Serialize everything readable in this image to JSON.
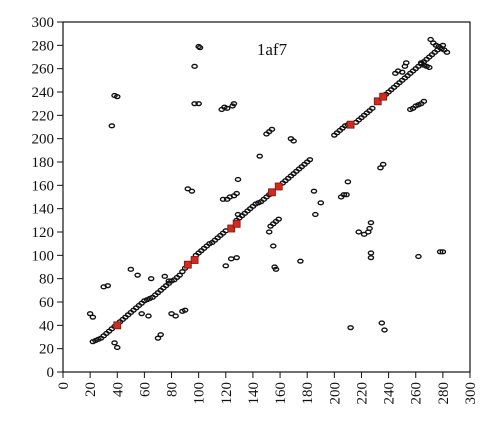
{
  "chart_data": {
    "type": "scatter",
    "title": "1af7",
    "xlabel": "",
    "ylabel": "",
    "xlim": [
      0,
      300
    ],
    "ylim": [
      0,
      300
    ],
    "x_ticks": [
      0,
      20,
      40,
      60,
      80,
      100,
      120,
      140,
      160,
      180,
      200,
      220,
      240,
      260,
      280,
      300
    ],
    "y_ticks": [
      0,
      20,
      40,
      60,
      80,
      100,
      120,
      140,
      160,
      180,
      200,
      220,
      240,
      260,
      280,
      300
    ],
    "x_tick_labels": [
      "0",
      "20",
      "40",
      "60",
      "80",
      "100",
      "120",
      "140",
      "160",
      "180",
      "200",
      "220",
      "240",
      "260",
      "280",
      "300"
    ],
    "y_tick_labels": [
      "0",
      "20",
      "40",
      "60",
      "80",
      "100",
      "120",
      "140",
      "160",
      "180",
      "200",
      "220",
      "240",
      "260",
      "280",
      "300"
    ],
    "grid": false,
    "colors": {
      "contact": "#111111",
      "highlight": "#d42a1e"
    },
    "series": [
      {
        "role": "contacts",
        "points": [
          [
            22,
            26
          ],
          [
            24,
            27
          ],
          [
            26,
            28
          ],
          [
            28,
            29
          ],
          [
            30,
            31
          ],
          [
            32,
            33
          ],
          [
            34,
            35
          ],
          [
            36,
            37
          ],
          [
            38,
            39
          ],
          [
            42,
            43
          ],
          [
            44,
            45
          ],
          [
            46,
            47
          ],
          [
            48,
            49
          ],
          [
            50,
            51
          ],
          [
            52,
            53
          ],
          [
            54,
            55
          ],
          [
            56,
            57
          ],
          [
            58,
            59
          ],
          [
            60,
            61
          ],
          [
            62,
            62
          ],
          [
            64,
            63
          ],
          [
            66,
            64
          ],
          [
            68,
            66
          ],
          [
            70,
            68
          ],
          [
            72,
            70
          ],
          [
            74,
            72
          ],
          [
            76,
            74
          ],
          [
            78,
            76
          ],
          [
            80,
            78
          ],
          [
            82,
            79
          ],
          [
            84,
            81
          ],
          [
            86,
            83
          ],
          [
            88,
            86
          ],
          [
            90,
            89
          ],
          [
            98,
            100
          ],
          [
            100,
            102
          ],
          [
            102,
            104
          ],
          [
            104,
            106
          ],
          [
            106,
            108
          ],
          [
            108,
            110
          ],
          [
            110,
            111
          ],
          [
            112,
            113
          ],
          [
            114,
            115
          ],
          [
            116,
            117
          ],
          [
            118,
            119
          ],
          [
            120,
            121
          ],
          [
            128,
            130
          ],
          [
            130,
            132
          ],
          [
            132,
            134
          ],
          [
            134,
            136
          ],
          [
            136,
            138
          ],
          [
            138,
            140
          ],
          [
            140,
            142
          ],
          [
            142,
            144
          ],
          [
            144,
            145
          ],
          [
            146,
            146
          ],
          [
            148,
            148
          ],
          [
            150,
            150
          ],
          [
            152,
            152
          ],
          [
            162,
            162
          ],
          [
            164,
            164
          ],
          [
            166,
            166
          ],
          [
            168,
            168
          ],
          [
            170,
            170
          ],
          [
            172,
            172
          ],
          [
            174,
            174
          ],
          [
            176,
            176
          ],
          [
            178,
            178
          ],
          [
            180,
            180
          ],
          [
            182,
            182
          ],
          [
            200,
            203
          ],
          [
            202,
            205
          ],
          [
            204,
            207
          ],
          [
            206,
            209
          ],
          [
            208,
            211
          ],
          [
            210,
            212
          ],
          [
            216,
            214
          ],
          [
            218,
            216
          ],
          [
            220,
            218
          ],
          [
            222,
            220
          ],
          [
            224,
            222
          ],
          [
            226,
            224
          ],
          [
            228,
            226
          ],
          [
            238,
            238
          ],
          [
            240,
            240
          ],
          [
            242,
            242
          ],
          [
            244,
            244
          ],
          [
            246,
            246
          ],
          [
            248,
            248
          ],
          [
            250,
            250
          ],
          [
            252,
            252
          ],
          [
            254,
            254
          ],
          [
            256,
            256
          ],
          [
            258,
            258
          ],
          [
            260,
            260
          ],
          [
            262,
            262
          ],
          [
            264,
            264
          ],
          [
            266,
            266
          ],
          [
            268,
            268
          ],
          [
            270,
            270
          ],
          [
            272,
            272
          ],
          [
            274,
            274
          ],
          [
            276,
            276
          ],
          [
            278,
            278
          ],
          [
            280,
            280
          ],
          [
            38,
            237
          ],
          [
            40,
            236
          ],
          [
            36,
            211
          ],
          [
            97,
            262
          ],
          [
            100,
            279
          ],
          [
            101,
            278
          ],
          [
            97,
            230
          ],
          [
            100,
            230
          ],
          [
            92,
            157
          ],
          [
            95,
            155
          ],
          [
            118,
            148
          ],
          [
            121,
            148
          ],
          [
            123,
            150
          ],
          [
            126,
            151
          ],
          [
            128,
            153
          ],
          [
            129,
            135
          ],
          [
            117,
            225
          ],
          [
            119,
            227
          ],
          [
            121,
            226
          ],
          [
            125,
            228
          ],
          [
            126,
            230
          ],
          [
            129,
            165
          ],
          [
            153,
            125
          ],
          [
            155,
            127
          ],
          [
            157,
            129
          ],
          [
            159,
            131
          ],
          [
            152,
            120
          ],
          [
            150,
            204
          ],
          [
            152,
            206
          ],
          [
            154,
            208
          ],
          [
            145,
            185
          ],
          [
            155,
            108
          ],
          [
            156,
            90
          ],
          [
            157,
            88
          ],
          [
            175,
            95
          ],
          [
            185,
            155
          ],
          [
            186,
            135
          ],
          [
            190,
            145
          ],
          [
            205,
            150
          ],
          [
            207,
            152
          ],
          [
            209,
            152
          ],
          [
            210,
            163
          ],
          [
            212,
            38
          ],
          [
            218,
            120
          ],
          [
            222,
            118
          ],
          [
            225,
            120
          ],
          [
            226,
            123
          ],
          [
            227,
            128
          ],
          [
            227,
            102
          ],
          [
            227,
            98
          ],
          [
            235,
            42
          ],
          [
            237,
            36
          ],
          [
            245,
            256
          ],
          [
            247,
            258
          ],
          [
            250,
            257
          ],
          [
            252,
            262
          ],
          [
            253,
            265
          ],
          [
            256,
            225
          ],
          [
            258,
            226
          ],
          [
            260,
            228
          ],
          [
            262,
            229
          ],
          [
            264,
            230
          ],
          [
            266,
            232
          ],
          [
            262,
            99
          ],
          [
            271,
            285
          ],
          [
            273,
            282
          ],
          [
            275,
            280
          ],
          [
            277,
            279
          ],
          [
            279,
            277
          ],
          [
            281,
            276
          ],
          [
            283,
            274
          ],
          [
            264,
            265
          ],
          [
            266,
            263
          ],
          [
            268,
            262
          ],
          [
            270,
            261
          ],
          [
            278,
            103
          ],
          [
            280,
            103
          ],
          [
            20,
            50
          ],
          [
            22,
            47
          ],
          [
            30,
            73
          ],
          [
            33,
            74
          ],
          [
            38,
            25
          ],
          [
            40,
            21
          ],
          [
            50,
            88
          ],
          [
            55,
            83
          ],
          [
            58,
            50
          ],
          [
            63,
            48
          ],
          [
            65,
            80
          ],
          [
            70,
            29
          ],
          [
            72,
            32
          ],
          [
            75,
            82
          ],
          [
            78,
            78
          ],
          [
            80,
            50
          ],
          [
            83,
            48
          ],
          [
            88,
            52
          ],
          [
            90,
            53
          ],
          [
            120,
            91
          ],
          [
            124,
            97
          ],
          [
            128,
            98
          ],
          [
            234,
            175
          ],
          [
            236,
            178
          ],
          [
            168,
            200
          ],
          [
            170,
            198
          ]
        ]
      },
      {
        "role": "highlighted",
        "points": [
          [
            40,
            40
          ],
          [
            92,
            92
          ],
          [
            97,
            96
          ],
          [
            124,
            123
          ],
          [
            128,
            127
          ],
          [
            154,
            154
          ],
          [
            159,
            159
          ],
          [
            212,
            212
          ],
          [
            232,
            232
          ],
          [
            236,
            236
          ]
        ]
      }
    ]
  }
}
